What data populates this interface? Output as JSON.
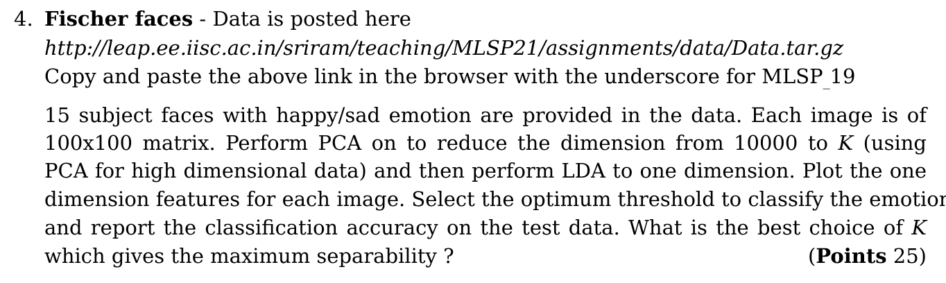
{
  "question": {
    "number": "4.",
    "title": "Fischer faces",
    "title_suffix": " - Data is posted here",
    "url": "http://leap.ee.iisc.ac.in/sriram/teaching/MLSP21/assignments/data/Data.tar.gz",
    "note_prefix": "Copy and paste the above link in the browser with the underscore for MLSP",
    "note_subscript": "_",
    "note_suffix": "19",
    "body_lines": [
      "15 subject faces with happy/sad emotion are provided in the data.  Each image is of",
      "100x100 matrix.  Perform PCA on to reduce the dimension from 10000 to ",
      " (using",
      "PCA for high dimensional data) and then perform LDA to one dimension. Plot the one",
      "dimension features for each image. Select the optimum threshold to classify the emotion",
      "and report the classification accuracy on the test data.  What is the best choice of ",
      "which gives the maximum separability ?"
    ],
    "k_symbol": "K",
    "points_open": "(",
    "points_label": "Points",
    "points_value": " 25)"
  }
}
